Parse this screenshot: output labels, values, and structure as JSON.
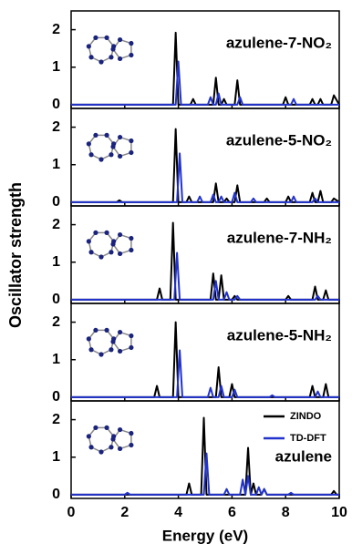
{
  "chart_data": [
    {
      "type": "line",
      "annotation": "azulene-7-NO₂",
      "xlim": [
        0,
        10
      ],
      "ylim": [
        -0.1,
        2.5
      ],
      "yticks": [
        0,
        1,
        2
      ],
      "series": [
        {
          "color": "#000000",
          "x": [
            0,
            3.8,
            3.9,
            4.0,
            4.45,
            4.55,
            4.65,
            5.3,
            5.4,
            5.5,
            5.6,
            5.7,
            5.8,
            6.1,
            6.2,
            6.3,
            7.9,
            8.0,
            8.1,
            8.9,
            9.0,
            9.1,
            9.2,
            9.3,
            9.4,
            9.7,
            9.8,
            10
          ],
          "values": [
            0,
            0,
            1.92,
            0,
            0,
            0.15,
            0,
            0,
            0.72,
            0,
            0,
            0.15,
            0,
            0,
            0.65,
            0,
            0,
            0.2,
            0,
            0,
            0.15,
            0,
            0,
            0.15,
            0,
            0,
            0.25,
            0
          ]
        },
        {
          "color": "#2233cc",
          "x": [
            0,
            3.9,
            4.0,
            4.1,
            5.1,
            5.2,
            5.3,
            5.4,
            5.5,
            5.6,
            6.2,
            6.3,
            6.4,
            8.2,
            8.3,
            8.4,
            10
          ],
          "values": [
            0,
            0,
            1.15,
            0,
            0,
            0.2,
            0,
            0,
            0.3,
            0,
            0,
            0.2,
            0,
            0,
            0.15,
            0,
            0
          ]
        }
      ]
    },
    {
      "type": "line",
      "annotation": "azulene-5-NO₂",
      "xlim": [
        0,
        10
      ],
      "ylim": [
        -0.1,
        2.5
      ],
      "yticks": [
        0,
        1,
        2
      ],
      "series": [
        {
          "color": "#000000",
          "x": [
            0,
            1.7,
            1.8,
            1.9,
            3.8,
            3.9,
            4.0,
            4.3,
            4.4,
            4.5,
            5.3,
            5.4,
            5.5,
            5.7,
            5.8,
            5.9,
            6.1,
            6.2,
            6.3,
            7.2,
            7.3,
            7.4,
            8.0,
            8.1,
            8.2,
            8.9,
            9.0,
            9.1,
            9.2,
            9.3,
            9.4,
            9.7,
            9.8,
            10
          ],
          "values": [
            0,
            0,
            0.05,
            0,
            0,
            1.95,
            0,
            0,
            0.15,
            0,
            0,
            0.5,
            0,
            0,
            0.1,
            0,
            0,
            0.45,
            0,
            0,
            0.1,
            0,
            0,
            0.15,
            0,
            0,
            0.25,
            0,
            0,
            0.3,
            0,
            0,
            0.1,
            0
          ]
        },
        {
          "color": "#2233cc",
          "x": [
            0,
            3.95,
            4.05,
            4.15,
            4.7,
            4.8,
            4.9,
            5.2,
            5.3,
            5.4,
            5.5,
            5.6,
            5.7,
            6.0,
            6.1,
            6.2,
            6.7,
            6.8,
            6.9,
            8.2,
            8.3,
            8.4,
            9.0,
            9.1,
            9.2,
            10
          ],
          "values": [
            0,
            0,
            1.3,
            0,
            0,
            0.15,
            0,
            0,
            0.2,
            0,
            0,
            0.15,
            0,
            0,
            0.25,
            0,
            0,
            0.1,
            0,
            0,
            0.15,
            0,
            0,
            0.1,
            0,
            0
          ]
        }
      ]
    },
    {
      "type": "line",
      "annotation": "azulene-7-NH₂",
      "y_label": "Oscillator strength",
      "xlim": [
        0,
        10
      ],
      "ylim": [
        -0.1,
        2.5
      ],
      "yticks": [
        0,
        1,
        2
      ],
      "series": [
        {
          "color": "#000000",
          "x": [
            0,
            3.2,
            3.3,
            3.4,
            3.7,
            3.8,
            3.9,
            5.2,
            5.3,
            5.4,
            5.5,
            5.6,
            5.7,
            6.0,
            6.1,
            6.2,
            8.0,
            8.1,
            8.2,
            9.0,
            9.1,
            9.2,
            9.4,
            9.5,
            9.6,
            10
          ],
          "values": [
            0,
            0,
            0.3,
            0,
            0,
            2.05,
            0,
            0,
            0.7,
            0,
            0,
            0.65,
            0,
            0,
            0.1,
            0,
            0,
            0.1,
            0,
            0,
            0.35,
            0,
            0,
            0.25,
            0,
            0
          ]
        },
        {
          "color": "#2233cc",
          "x": [
            0,
            3.85,
            3.95,
            4.05,
            5.3,
            5.4,
            5.5,
            5.7,
            5.8,
            5.9,
            6.1,
            6.2,
            6.3,
            9.1,
            9.2,
            9.3,
            10
          ],
          "values": [
            0,
            0,
            1.25,
            0,
            0,
            0.5,
            0,
            0,
            0.2,
            0,
            0,
            0.1,
            0,
            0,
            0.1,
            0,
            0
          ]
        }
      ]
    },
    {
      "type": "line",
      "annotation": "azulene-5-NH₂",
      "xlim": [
        0,
        10
      ],
      "ylim": [
        -0.1,
        2.5
      ],
      "yticks": [
        0,
        1,
        2
      ],
      "series": [
        {
          "color": "#000000",
          "x": [
            0,
            3.1,
            3.2,
            3.3,
            3.8,
            3.9,
            4.0,
            5.4,
            5.5,
            5.6,
            5.9,
            6.0,
            6.1,
            8.9,
            9.0,
            9.1,
            9.4,
            9.5,
            9.6,
            10
          ],
          "values": [
            0,
            0,
            0.3,
            0,
            0,
            2.0,
            0,
            0,
            0.8,
            0,
            0,
            0.35,
            0,
            0,
            0.3,
            0,
            0,
            0.35,
            0,
            0
          ]
        },
        {
          "color": "#2233cc",
          "x": [
            0,
            3.95,
            4.05,
            4.15,
            5.1,
            5.2,
            5.3,
            5.5,
            5.6,
            5.7,
            6.0,
            6.1,
            6.2,
            7.4,
            7.5,
            7.6,
            9.1,
            9.2,
            9.3,
            10
          ],
          "values": [
            0,
            0,
            1.25,
            0,
            0,
            0.25,
            0,
            0,
            0.3,
            0,
            0,
            0.2,
            0,
            0,
            0.05,
            0,
            0,
            0.15,
            0,
            0
          ]
        }
      ]
    },
    {
      "type": "line",
      "annotation": "azulene",
      "x_label": "Energy (eV)",
      "legend": "upper right",
      "xlim": [
        0,
        10
      ],
      "ylim": [
        -0.1,
        2.5
      ],
      "yticks": [
        0,
        1,
        2
      ],
      "xticks": [
        0,
        2,
        4,
        6,
        8,
        10
      ],
      "series": [
        {
          "name": "ZINDO",
          "color": "#000000",
          "x": [
            0,
            4.3,
            4.4,
            4.5,
            4.85,
            4.95,
            5.05,
            6.5,
            6.6,
            6.7,
            6.8,
            6.9,
            7.1,
            7.2,
            7.3,
            9.7,
            9.8,
            9.9,
            10
          ],
          "values": [
            0,
            0,
            0.3,
            0,
            0,
            2.05,
            0,
            0,
            1.25,
            0,
            0.3,
            0,
            0,
            0.15,
            0,
            0,
            0.1,
            0,
            0
          ]
        },
        {
          "name": "TD-DFT",
          "color": "#2233cc",
          "x": [
            0,
            2.0,
            2.1,
            2.2,
            4.95,
            5.05,
            5.15,
            5.7,
            5.8,
            5.9,
            6.3,
            6.4,
            6.5,
            6.6,
            6.7,
            6.9,
            7.0,
            7.1,
            7.2,
            7.3,
            8.1,
            8.2,
            8.3,
            10
          ],
          "values": [
            0,
            0,
            0.05,
            0,
            0,
            1.1,
            0,
            0,
            0.15,
            0,
            0,
            0.4,
            0,
            0.5,
            0,
            0,
            0.2,
            0,
            0.15,
            0,
            0,
            0.05,
            0,
            0
          ]
        }
      ]
    }
  ]
}
